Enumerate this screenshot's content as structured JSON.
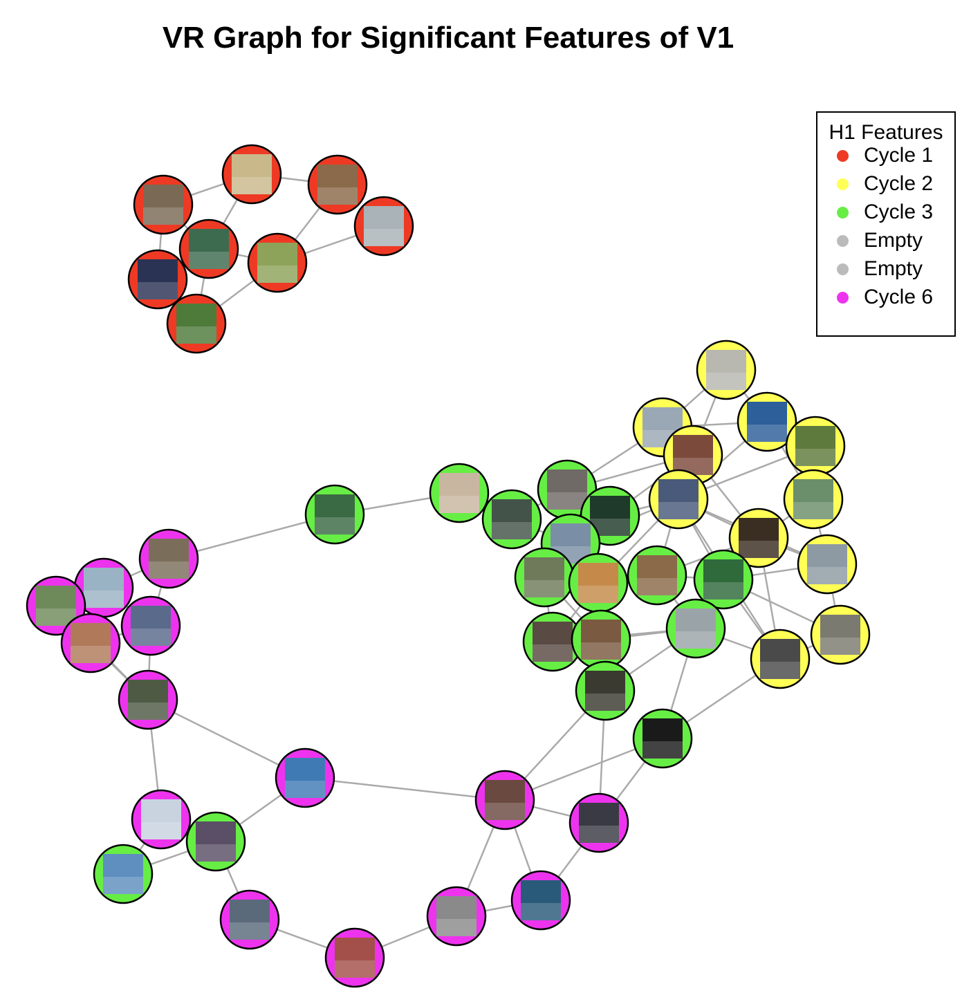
{
  "title": "VR Graph for Significant Features of V1",
  "legend": {
    "title": "H1 Features",
    "items": [
      {
        "label": "Cycle 1",
        "color": "#ee3a24"
      },
      {
        "label": "Cycle 2",
        "color": "#ffff55"
      },
      {
        "label": "Cycle 3",
        "color": "#66ee44"
      },
      {
        "label": "Empty",
        "color": "#bbbbbb"
      },
      {
        "label": "Empty",
        "color": "#bbbbbb"
      },
      {
        "label": "Cycle 6",
        "color": "#ee33ee"
      }
    ]
  },
  "colors": {
    "Cycle 1": "#ee3a24",
    "Cycle 2": "#ffff55",
    "Cycle 3": "#66ee44",
    "Cycle 6": "#ee33ee",
    "edge": "#aaaaaa",
    "node_border": "#000000"
  },
  "nodes": [
    {
      "id": "r1",
      "group": "Cycle 1",
      "photo": "#7a6a55"
    },
    {
      "id": "r2",
      "group": "Cycle 1",
      "photo": "#c9b98a"
    },
    {
      "id": "r3",
      "group": "Cycle 1",
      "photo": "#8a6a4a"
    },
    {
      "id": "r4",
      "group": "Cycle 1",
      "photo": "#a9b3b8"
    },
    {
      "id": "r5",
      "group": "Cycle 1",
      "photo": "#3d6b4f"
    },
    {
      "id": "r6",
      "group": "Cycle 1",
      "photo": "#8da35a"
    },
    {
      "id": "r7",
      "group": "Cycle 1",
      "photo": "#2b3354"
    },
    {
      "id": "r8",
      "group": "Cycle 1",
      "photo": "#4e7a3a"
    },
    {
      "id": "y1",
      "group": "Cycle 2",
      "photo": "#b8b8b0"
    },
    {
      "id": "y2",
      "group": "Cycle 2",
      "photo": "#9aa8b5"
    },
    {
      "id": "y3",
      "group": "Cycle 2",
      "photo": "#2d5f9a"
    },
    {
      "id": "y4",
      "group": "Cycle 2",
      "photo": "#7c4a3a"
    },
    {
      "id": "y5",
      "group": "Cycle 2",
      "photo": "#5e7a3c"
    },
    {
      "id": "y6",
      "group": "Cycle 2",
      "photo": "#4a5a7a"
    },
    {
      "id": "y7",
      "group": "Cycle 2",
      "photo": "#6b8f6a"
    },
    {
      "id": "y8",
      "group": "Cycle 2",
      "photo": "#3a2e22"
    },
    {
      "id": "y9",
      "group": "Cycle 2",
      "photo": "#8e9aa3"
    },
    {
      "id": "y10",
      "group": "Cycle 2",
      "photo": "#7a7a70"
    },
    {
      "id": "y11",
      "group": "Cycle 2",
      "photo": "#4a4a4a"
    },
    {
      "id": "g1",
      "group": "Cycle 3",
      "photo": "#3a6a44"
    },
    {
      "id": "g2",
      "group": "Cycle 3",
      "photo": "#c9b6a0"
    },
    {
      "id": "g3",
      "group": "Cycle 3",
      "photo": "#44534a"
    },
    {
      "id": "g4",
      "group": "Cycle 3",
      "photo": "#6f6a66"
    },
    {
      "id": "g5",
      "group": "Cycle 3",
      "photo": "#1f3a2a"
    },
    {
      "id": "g6",
      "group": "Cycle 3",
      "photo": "#7a8fa5"
    },
    {
      "id": "g7",
      "group": "Cycle 3",
      "photo": "#6e7a5a"
    },
    {
      "id": "g8",
      "group": "Cycle 3",
      "photo": "#c58a4a"
    },
    {
      "id": "g9",
      "group": "Cycle 3",
      "photo": "#8a6a48"
    },
    {
      "id": "g10",
      "group": "Cycle 3",
      "photo": "#2e6a3a"
    },
    {
      "id": "g11",
      "group": "Cycle 3",
      "photo": "#5a4a44"
    },
    {
      "id": "g12",
      "group": "Cycle 3",
      "photo": "#7a5a40"
    },
    {
      "id": "g13",
      "group": "Cycle 3",
      "photo": "#9aa4a8"
    },
    {
      "id": "g14",
      "group": "Cycle 3",
      "photo": "#3a3a30"
    },
    {
      "id": "g15",
      "group": "Cycle 3",
      "photo": "#1a1a1a"
    },
    {
      "id": "g16",
      "group": "Cycle 3",
      "photo": "#5a4f66"
    },
    {
      "id": "g17",
      "group": "Cycle 3",
      "photo": "#5f8fbf"
    },
    {
      "id": "m1",
      "group": "Cycle 6",
      "photo": "#7a6e5a"
    },
    {
      "id": "m2",
      "group": "Cycle 6",
      "photo": "#9ab3c4"
    },
    {
      "id": "m3",
      "group": "Cycle 6",
      "photo": "#6f8a5a"
    },
    {
      "id": "m4",
      "group": "Cycle 6",
      "photo": "#5a6a8a"
    },
    {
      "id": "m5",
      "group": "Cycle 6",
      "photo": "#b07a5a"
    },
    {
      "id": "m6",
      "group": "Cycle 6",
      "photo": "#4f5a45"
    },
    {
      "id": "m7",
      "group": "Cycle 6",
      "photo": "#3f7ab5"
    },
    {
      "id": "m8",
      "group": "Cycle 6",
      "photo": "#c9d3e0"
    },
    {
      "id": "m9",
      "group": "Cycle 6",
      "photo": "#5a6a7a"
    },
    {
      "id": "m10",
      "group": "Cycle 6",
      "photo": "#a4504a"
    },
    {
      "id": "m11",
      "group": "Cycle 6",
      "photo": "#8a8a8a"
    },
    {
      "id": "m12",
      "group": "Cycle 6",
      "photo": "#6a4a40"
    },
    {
      "id": "m13",
      "group": "Cycle 6",
      "photo": "#3a3a44"
    },
    {
      "id": "m14",
      "group": "Cycle 6",
      "photo": "#2a5a7a"
    }
  ],
  "edges": [
    [
      "r1",
      "r2"
    ],
    [
      "r2",
      "r3"
    ],
    [
      "r1",
      "r5"
    ],
    [
      "r2",
      "r5"
    ],
    [
      "r5",
      "r7"
    ],
    [
      "r5",
      "r8"
    ],
    [
      "r7",
      "r8"
    ],
    [
      "r5",
      "r6"
    ],
    [
      "r3",
      "r6"
    ],
    [
      "r4",
      "r6"
    ],
    [
      "r6",
      "r8"
    ],
    [
      "r1",
      "r7"
    ],
    [
      "y1",
      "y2"
    ],
    [
      "y1",
      "y3"
    ],
    [
      "y1",
      "y4"
    ],
    [
      "y2",
      "y3"
    ],
    [
      "y2",
      "y4"
    ],
    [
      "y3",
      "y5"
    ],
    [
      "y3",
      "y7"
    ],
    [
      "y4",
      "y6"
    ],
    [
      "y5",
      "y7"
    ],
    [
      "y6",
      "y8"
    ],
    [
      "y7",
      "y8"
    ],
    [
      "y7",
      "y9"
    ],
    [
      "y8",
      "y9"
    ],
    [
      "y9",
      "y10"
    ],
    [
      "y10",
      "y11"
    ],
    [
      "y8",
      "y11"
    ],
    [
      "y6",
      "y11"
    ],
    [
      "y6",
      "y9"
    ],
    [
      "y4",
      "y8"
    ],
    [
      "y2",
      "y6"
    ],
    [
      "y3",
      "y6"
    ],
    [
      "y5",
      "y6"
    ],
    [
      "g1",
      "g2"
    ],
    [
      "g2",
      "g3"
    ],
    [
      "g3",
      "g4"
    ],
    [
      "g3",
      "g6"
    ],
    [
      "g4",
      "g5"
    ],
    [
      "g4",
      "g6"
    ],
    [
      "g5",
      "g6"
    ],
    [
      "g6",
      "g7"
    ],
    [
      "g6",
      "g8"
    ],
    [
      "g7",
      "g8"
    ],
    [
      "g8",
      "g9"
    ],
    [
      "g9",
      "g10"
    ],
    [
      "g7",
      "g11"
    ],
    [
      "g8",
      "g11"
    ],
    [
      "g11",
      "g12"
    ],
    [
      "g12",
      "g13"
    ],
    [
      "g9",
      "g13"
    ],
    [
      "g10",
      "g13"
    ],
    [
      "g12",
      "g14"
    ],
    [
      "g13",
      "g15"
    ],
    [
      "g8",
      "g12"
    ],
    [
      "g7",
      "g12"
    ],
    [
      "g14",
      "g13"
    ],
    [
      "g11",
      "g13"
    ],
    [
      "g4",
      "y2"
    ],
    [
      "g4",
      "y4"
    ],
    [
      "g5",
      "y6"
    ],
    [
      "g5",
      "y4"
    ],
    [
      "g9",
      "y6"
    ],
    [
      "g10",
      "y8"
    ],
    [
      "g10",
      "y6"
    ],
    [
      "g13",
      "y11"
    ],
    [
      "g10",
      "y10"
    ],
    [
      "g6",
      "y6"
    ],
    [
      "g8",
      "y6"
    ],
    [
      "g9",
      "y8"
    ],
    [
      "g10",
      "y11"
    ],
    [
      "g15",
      "y11"
    ],
    [
      "g10",
      "y9"
    ],
    [
      "g1",
      "m1"
    ],
    [
      "m1",
      "m2"
    ],
    [
      "m1",
      "m4"
    ],
    [
      "m2",
      "m3"
    ],
    [
      "m2",
      "m4"
    ],
    [
      "m3",
      "m5"
    ],
    [
      "m4",
      "m5"
    ],
    [
      "m4",
      "m6"
    ],
    [
      "m5",
      "m6"
    ],
    [
      "m3",
      "m6"
    ],
    [
      "m6",
      "m7"
    ],
    [
      "m6",
      "m8"
    ],
    [
      "m7",
      "g16"
    ],
    [
      "m8",
      "g16"
    ],
    [
      "m8",
      "g17"
    ],
    [
      "g16",
      "g17"
    ],
    [
      "g16",
      "m9"
    ],
    [
      "m9",
      "m10"
    ],
    [
      "m10",
      "m11"
    ],
    [
      "m11",
      "m12"
    ],
    [
      "m11",
      "m14"
    ],
    [
      "m12",
      "m14"
    ],
    [
      "m12",
      "m13"
    ],
    [
      "m7",
      "m12"
    ],
    [
      "m13",
      "m14"
    ],
    [
      "m12",
      "g15"
    ],
    [
      "m12",
      "g14"
    ],
    [
      "m13",
      "g15"
    ],
    [
      "m13",
      "g14"
    ]
  ]
}
